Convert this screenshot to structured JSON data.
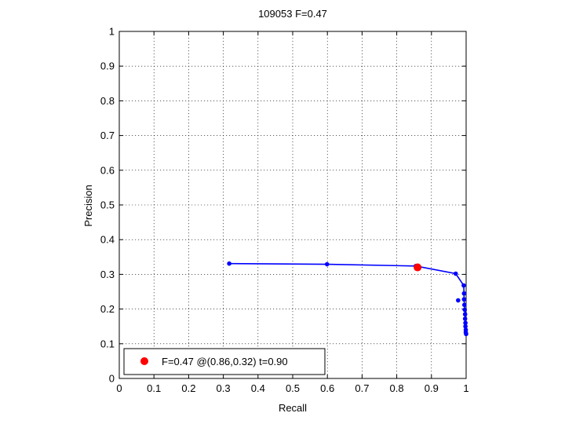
{
  "chart_data": {
    "type": "line",
    "title": "109053 F=0.47",
    "xlabel": "Recall",
    "ylabel": "Precision",
    "xlim": [
      0,
      1
    ],
    "ylim": [
      0,
      1
    ],
    "grid": true,
    "x_ticks": [
      "0",
      "0.1",
      "0.2",
      "0.3",
      "0.4",
      "0.5",
      "0.6",
      "0.7",
      "0.8",
      "0.9",
      "1"
    ],
    "y_ticks": [
      "0",
      "0.1",
      "0.2",
      "0.3",
      "0.4",
      "0.5",
      "0.6",
      "0.7",
      "0.8",
      "0.9",
      "1"
    ],
    "series": [
      {
        "color": "#0000ff",
        "points": [
          [
            0.317,
            0.331
          ],
          [
            0.599,
            0.329
          ],
          [
            0.855,
            0.324
          ],
          [
            0.97,
            0.302
          ],
          [
            0.993,
            0.268
          ],
          [
            0.994,
            0.245
          ],
          [
            0.994,
            0.228
          ],
          [
            0.995,
            0.212
          ],
          [
            0.996,
            0.198
          ],
          [
            0.997,
            0.185
          ],
          [
            0.997,
            0.172
          ],
          [
            0.998,
            0.16
          ],
          [
            0.998,
            0.15
          ],
          [
            0.999,
            0.14
          ],
          [
            0.999,
            0.133
          ],
          [
            1.0,
            0.128
          ]
        ],
        "extra_points": [
          [
            0.977,
            0.225
          ]
        ]
      }
    ],
    "highlight": {
      "x": 0.86,
      "y": 0.32,
      "color": "#ff0000"
    },
    "legend": {
      "position": "bottom-left",
      "entries": [
        {
          "label": "F=0.47 @(0.86,0.32) t=0.90",
          "color": "#ff0000"
        }
      ]
    }
  }
}
